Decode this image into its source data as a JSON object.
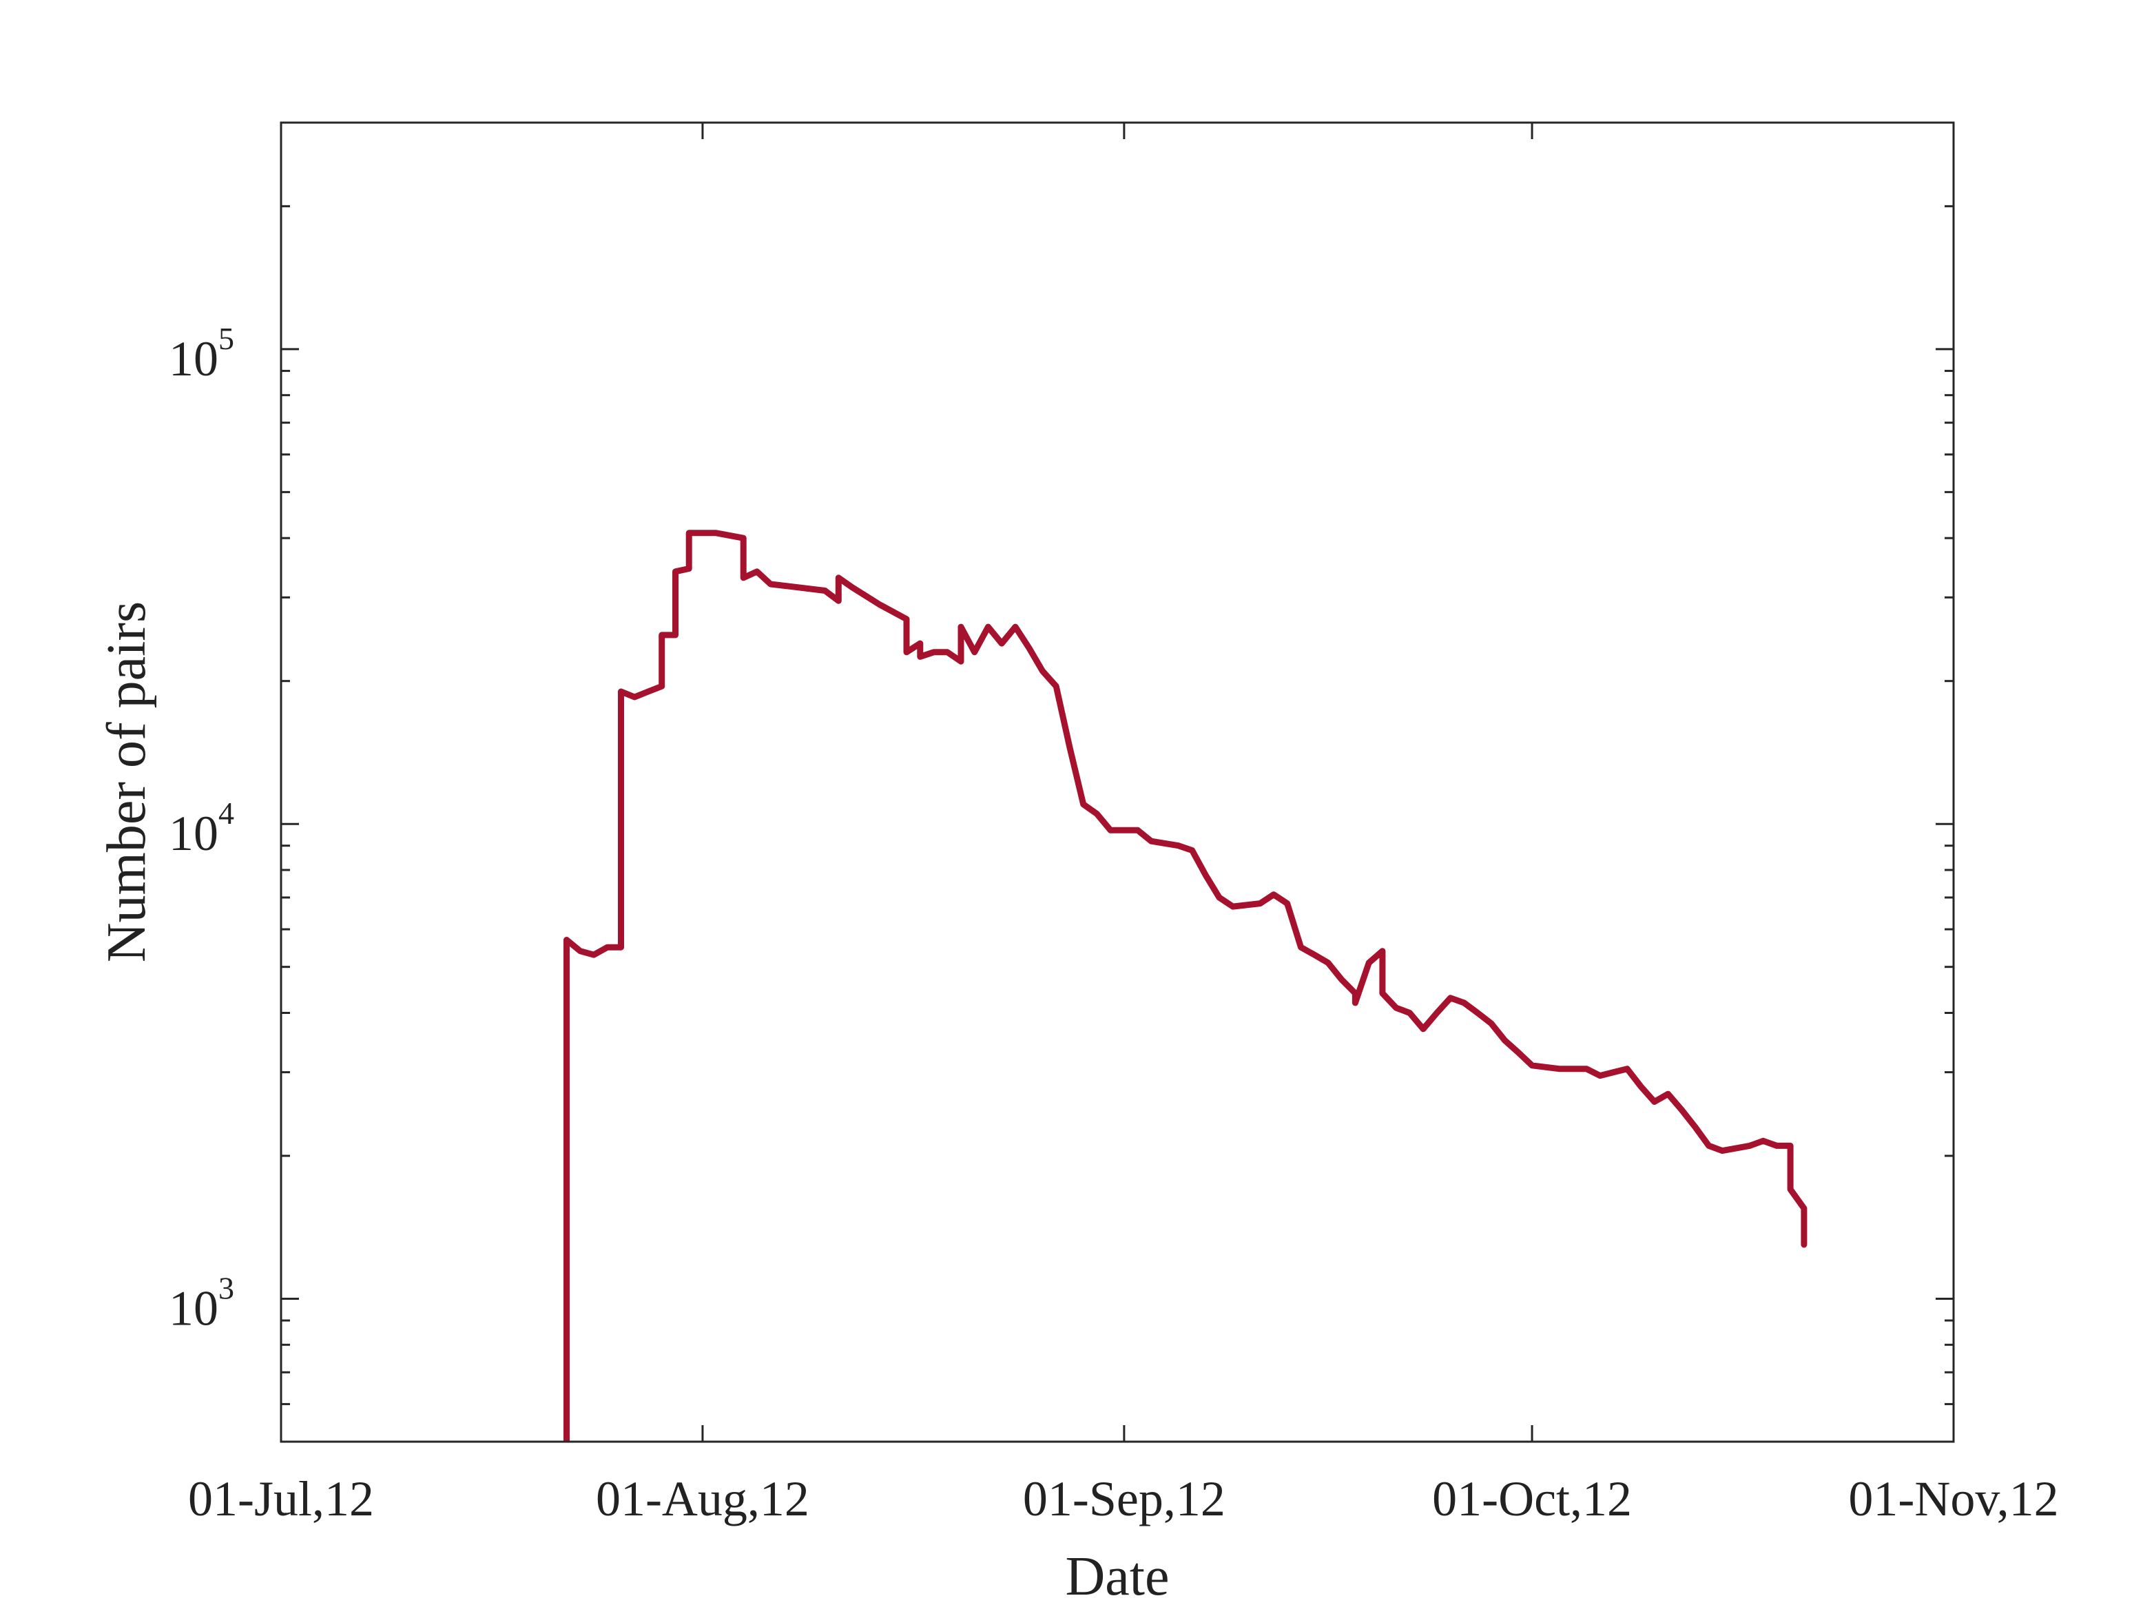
{
  "chart_data": {
    "type": "line",
    "xlabel": "Date",
    "ylabel": "Number of pairs",
    "x_ticks": [
      {
        "date": "2012-07-01",
        "label": "01-Jul,12"
      },
      {
        "date": "2012-08-01",
        "label": "01-Aug,12"
      },
      {
        "date": "2012-09-01",
        "label": "01-Sep,12"
      },
      {
        "date": "2012-10-01",
        "label": "01-Oct,12"
      },
      {
        "date": "2012-11-01",
        "label": "01-Nov,12"
      }
    ],
    "y_scale": "log",
    "y_ticks": [
      {
        "value": 1000,
        "base": "10",
        "exp": "3"
      },
      {
        "value": 10000,
        "base": "10",
        "exp": "4"
      },
      {
        "value": 100000,
        "base": "10",
        "exp": "5"
      }
    ],
    "xlim": [
      "2012-07-01",
      "2012-11-01"
    ],
    "ylim": [
      500,
      300000
    ],
    "grid": false,
    "series": [
      {
        "color": "#A6122E",
        "points": [
          [
            "2012-07-22",
            500
          ],
          [
            "2012-07-22",
            5700
          ],
          [
            "2012-07-23",
            5400
          ],
          [
            "2012-07-24",
            5300
          ],
          [
            "2012-07-25",
            5500
          ],
          [
            "2012-07-26",
            5500
          ],
          [
            "2012-07-26",
            19000
          ],
          [
            "2012-07-27",
            18500
          ],
          [
            "2012-07-28",
            19000
          ],
          [
            "2012-07-29",
            19500
          ],
          [
            "2012-07-29",
            25000
          ],
          [
            "2012-07-30",
            25000
          ],
          [
            "2012-07-30",
            34000
          ],
          [
            "2012-07-31",
            34500
          ],
          [
            "2012-07-31",
            41000
          ],
          [
            "2012-08-02",
            41000
          ],
          [
            "2012-08-04",
            40000
          ],
          [
            "2012-08-04",
            33000
          ],
          [
            "2012-08-05",
            34000
          ],
          [
            "2012-08-06",
            32000
          ],
          [
            "2012-08-08",
            31500
          ],
          [
            "2012-08-10",
            31000
          ],
          [
            "2012-08-11",
            29500
          ],
          [
            "2012-08-11",
            33000
          ],
          [
            "2012-08-12",
            31500
          ],
          [
            "2012-08-14",
            29000
          ],
          [
            "2012-08-16",
            27000
          ],
          [
            "2012-08-16",
            23000
          ],
          [
            "2012-08-17",
            24000
          ],
          [
            "2012-08-17",
            22500
          ],
          [
            "2012-08-18",
            23000
          ],
          [
            "2012-08-19",
            23000
          ],
          [
            "2012-08-20",
            22000
          ],
          [
            "2012-08-20",
            26000
          ],
          [
            "2012-08-21",
            23000
          ],
          [
            "2012-08-22",
            26000
          ],
          [
            "2012-08-23",
            24000
          ],
          [
            "2012-08-24",
            26000
          ],
          [
            "2012-08-25",
            23500
          ],
          [
            "2012-08-26",
            21000
          ],
          [
            "2012-08-27",
            19500
          ],
          [
            "2012-08-28",
            14500
          ],
          [
            "2012-08-29",
            11000
          ],
          [
            "2012-08-30",
            10500
          ],
          [
            "2012-08-31",
            9700
          ],
          [
            "2012-09-02",
            9700
          ],
          [
            "2012-09-03",
            9200
          ],
          [
            "2012-09-05",
            9000
          ],
          [
            "2012-09-06",
            8800
          ],
          [
            "2012-09-07",
            7800
          ],
          [
            "2012-09-08",
            7000
          ],
          [
            "2012-09-09",
            6700
          ],
          [
            "2012-09-11",
            6800
          ],
          [
            "2012-09-12",
            7100
          ],
          [
            "2012-09-13",
            6800
          ],
          [
            "2012-09-14",
            5500
          ],
          [
            "2012-09-15",
            5300
          ],
          [
            "2012-09-16",
            5100
          ],
          [
            "2012-09-17",
            4700
          ],
          [
            "2012-09-18",
            4400
          ],
          [
            "2012-09-18",
            4200
          ],
          [
            "2012-09-19",
            5100
          ],
          [
            "2012-09-20",
            5400
          ],
          [
            "2012-09-20",
            4400
          ],
          [
            "2012-09-21",
            4100
          ],
          [
            "2012-09-22",
            4000
          ],
          [
            "2012-09-23",
            3700
          ],
          [
            "2012-09-24",
            4000
          ],
          [
            "2012-09-25",
            4300
          ],
          [
            "2012-09-26",
            4200
          ],
          [
            "2012-09-27",
            4000
          ],
          [
            "2012-09-28",
            3800
          ],
          [
            "2012-09-29",
            3500
          ],
          [
            "2012-09-30",
            3300
          ],
          [
            "2012-10-01",
            3100
          ],
          [
            "2012-10-03",
            3050
          ],
          [
            "2012-10-05",
            3050
          ],
          [
            "2012-10-06",
            2950
          ],
          [
            "2012-10-07",
            3000
          ],
          [
            "2012-10-08",
            3050
          ],
          [
            "2012-10-09",
            2800
          ],
          [
            "2012-10-10",
            2600
          ],
          [
            "2012-10-11",
            2700
          ],
          [
            "2012-10-12",
            2500
          ],
          [
            "2012-10-13",
            2300
          ],
          [
            "2012-10-14",
            2100
          ],
          [
            "2012-10-15",
            2050
          ],
          [
            "2012-10-17",
            2100
          ],
          [
            "2012-10-18",
            2150
          ],
          [
            "2012-10-19",
            2100
          ],
          [
            "2012-10-20",
            2100
          ],
          [
            "2012-10-20",
            1700
          ],
          [
            "2012-10-21",
            1550
          ],
          [
            "2012-10-21",
            1300
          ]
        ]
      }
    ]
  }
}
